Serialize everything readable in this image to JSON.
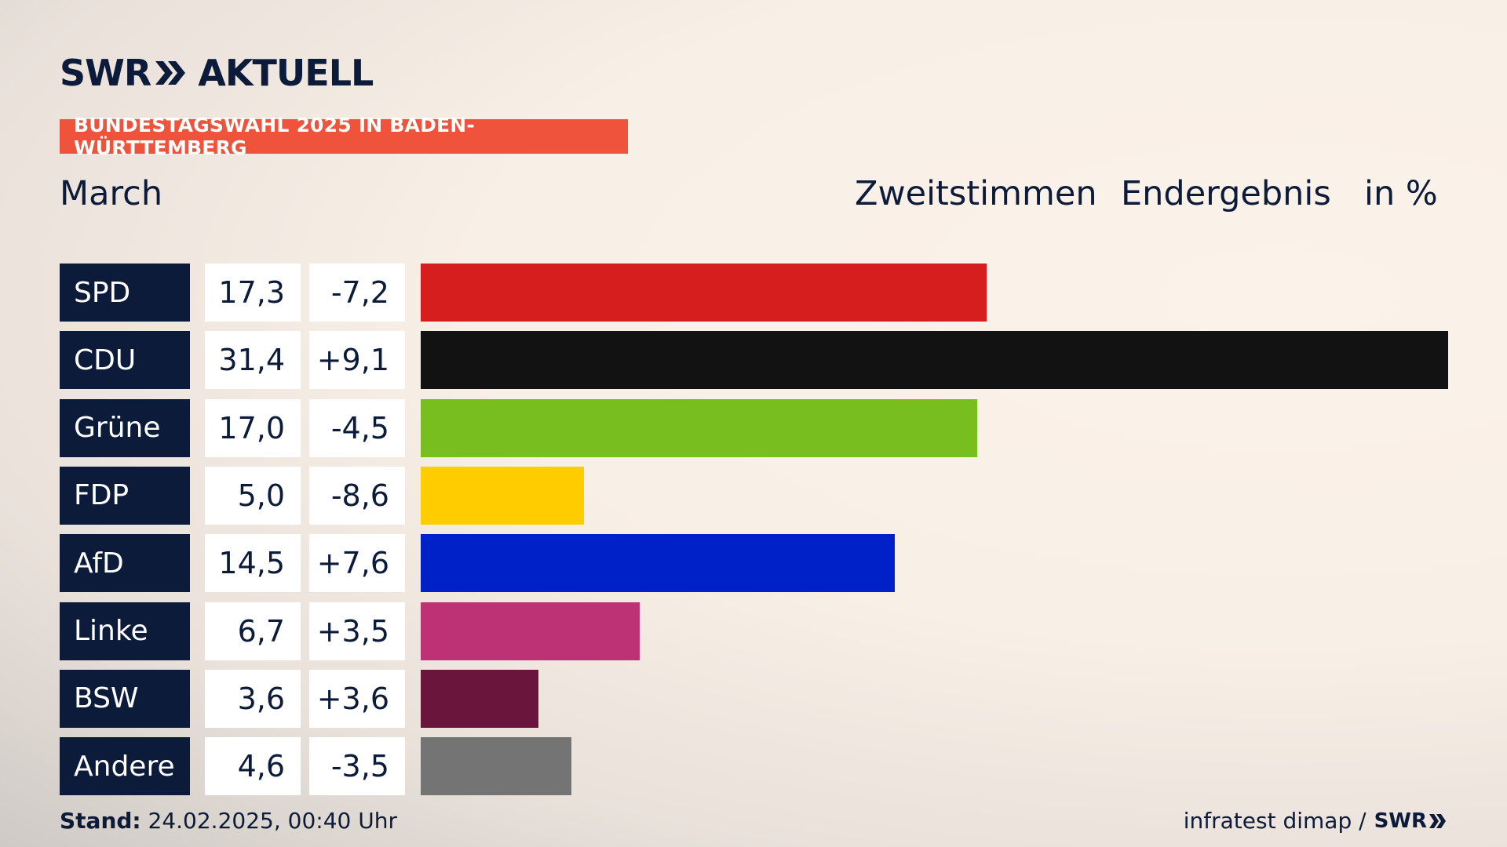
{
  "brand": {
    "logo_left": "SWR",
    "logo_right": "AKTUELL"
  },
  "banner": "BUNDESTAGSWAHL 2025 IN BADEN-WÜRTTEMBERG",
  "region": "March",
  "headers": {
    "votes": "Zweitstimmen",
    "status": "Endergebnis",
    "unit": "in %"
  },
  "footer": {
    "stand_label": "Stand:",
    "stand_value": " 24.02.2025, 00:40 Uhr",
    "source": "infratest dimap /",
    "source_logo": "SWR"
  },
  "chart_data": {
    "type": "bar",
    "orientation": "horizontal",
    "categories": [
      "SPD",
      "CDU",
      "Grüne",
      "FDP",
      "AfD",
      "Linke",
      "BSW",
      "Andere"
    ],
    "values": [
      17.3,
      31.4,
      17.0,
      5.0,
      14.5,
      6.7,
      3.6,
      4.6
    ],
    "value_labels": [
      "17,3",
      "31,4",
      "17,0",
      "5,0",
      "14,5",
      "6,7",
      "3,6",
      "4,6"
    ],
    "changes": [
      "-7,2",
      "+9,1",
      "-4,5",
      "-8,6",
      "+7,6",
      "+3,5",
      "+3,6",
      "-3,5"
    ],
    "colors": [
      "#d61e1e",
      "#121212",
      "#78be1e",
      "#ffcc00",
      "#0021c8",
      "#bc3275",
      "#6a163c",
      "#747474"
    ],
    "xlim": [
      0,
      31.4
    ]
  }
}
